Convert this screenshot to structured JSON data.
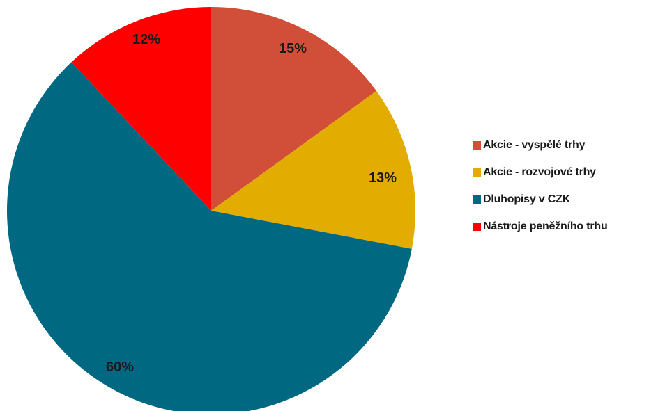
{
  "chart_data": {
    "type": "pie",
    "slices": [
      {
        "label": "Akcie - vyspělé trhy",
        "value": 15,
        "value_label": "15%",
        "color": "#d14f38"
      },
      {
        "label": "Akcie - rozvojové trhy",
        "value": 13,
        "value_label": "13%",
        "color": "#e3ac00"
      },
      {
        "label": "Dluhopisy v CZK",
        "value": 60,
        "value_label": "60%",
        "color": "#006880"
      },
      {
        "label": "Nástroje peněžního trhu",
        "value": 12,
        "value_label": "12%",
        "color": "#ff0000"
      }
    ],
    "start": "12 o'clock",
    "direction": "clockwise",
    "legend_position": "right"
  }
}
